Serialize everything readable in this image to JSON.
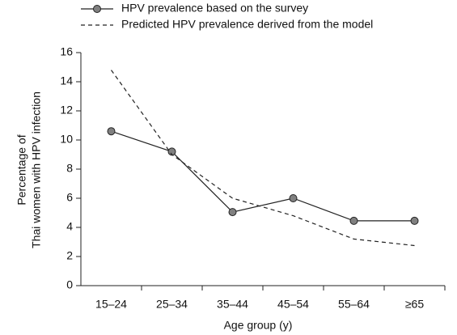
{
  "chart_data": {
    "type": "line",
    "xlabel": "Age group (y)",
    "ylabel": [
      "Percentage of",
      "Thai women with HPV infection"
    ],
    "categories": [
      "15–24",
      "25–34",
      "35–44",
      "45–54",
      "55–64",
      "≥65"
    ],
    "series": [
      {
        "name": "HPV prevalence based on the survey",
        "color": "#222222",
        "marker": "circle",
        "marker_color": "#808080",
        "dashed": false,
        "values": [
          10.6,
          9.2,
          5.05,
          6.0,
          4.45,
          4.45
        ]
      },
      {
        "name": "Predicted HPV prevalence derived from the model",
        "color": "#222222",
        "marker": null,
        "dashed": true,
        "values": [
          14.8,
          9.0,
          6.0,
          4.8,
          3.2,
          2.75
        ]
      }
    ],
    "ylim": [
      0,
      16
    ],
    "yticks": [
      0,
      2,
      4,
      6,
      8,
      10,
      12,
      14,
      16
    ],
    "grid": false
  }
}
